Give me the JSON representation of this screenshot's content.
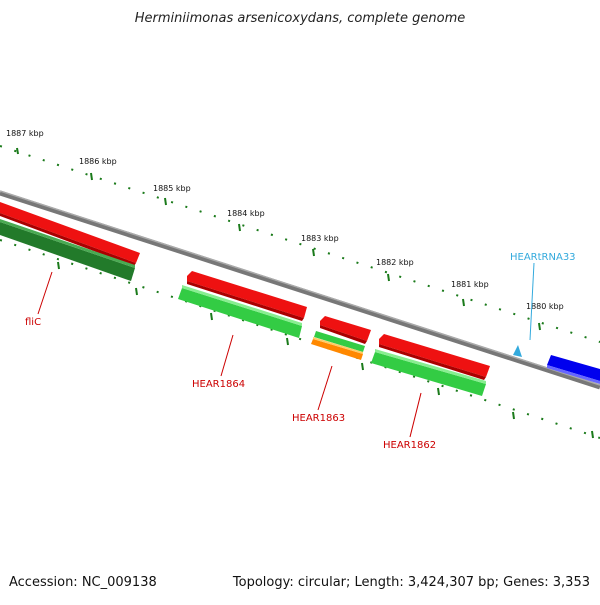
{
  "title": "Herminiimonas arsenicoxydans, complete genome",
  "footer": {
    "accession": "Accession: NC_009138",
    "summary": "Topology: circular; Length: 3,424,307 bp; Genes: 3,353"
  },
  "ticks": [
    "1887 kbp",
    "1886 kbp",
    "1885 kbp",
    "1884 kbp",
    "1883 kbp",
    "1882 kbp",
    "1881 kbp",
    "1880 kbp"
  ],
  "genes": {
    "fliC": "fliC",
    "hear1864": "HEAR1864",
    "hear1863": "HEAR1863",
    "hear1862": "HEAR1862",
    "trna": "HEARtRNA33"
  },
  "colors": {
    "cds_red": "#ee1111",
    "cds_green": "#33cc44",
    "cds_dark_green": "#227a2a",
    "cds_orange": "#ff8800",
    "cds_blue": "#0000ee",
    "trna": "#33aadd",
    "backbone": "#777777",
    "tick_marks": "#1a7a1a",
    "label_red": "#cc0000"
  }
}
